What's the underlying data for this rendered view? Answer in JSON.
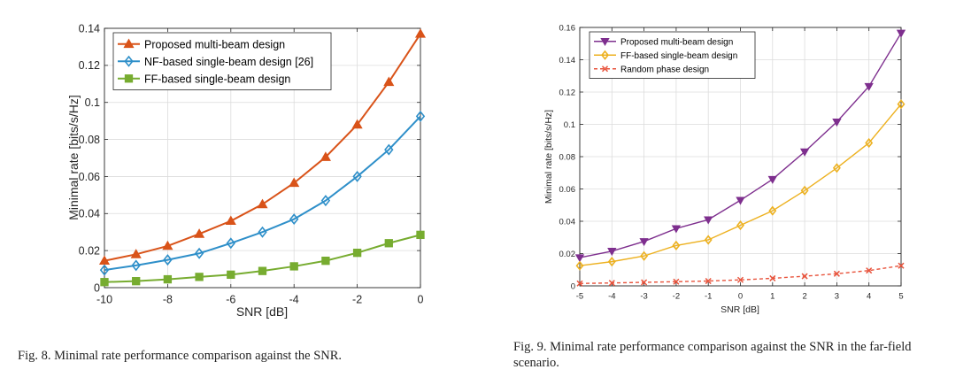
{
  "chart_data": [
    {
      "type": "line",
      "xlabel": "SNR [dB]",
      "ylabel": "Minimal rate [bits/s/Hz]",
      "xlim": [
        -10,
        0
      ],
      "ylim": [
        0,
        0.14
      ],
      "xticks": [
        -10,
        -8,
        -6,
        -4,
        -2,
        0
      ],
      "yticks": [
        0,
        0.02,
        0.04,
        0.06,
        0.08,
        0.1,
        0.12,
        0.14
      ],
      "xtick_labels": [
        "-10",
        "-8",
        "-6",
        "-4",
        "-2",
        "0"
      ],
      "ytick_labels": [
        "0",
        "0.02",
        "0.04",
        "0.06",
        "0.08",
        "0.1",
        "0.12",
        "0.14"
      ],
      "grid": true,
      "legend": "top-left",
      "x": [
        -10,
        -9,
        -8,
        -7,
        -6,
        -5,
        -4,
        -3,
        -2,
        -1,
        0
      ],
      "series": [
        {
          "name": "Proposed multi-beam design",
          "color": "#D95319",
          "marker": "triangle-up",
          "dash": "solid",
          "values": [
            0.0145,
            0.018,
            0.0225,
            0.029,
            0.036,
            0.045,
            0.0565,
            0.0705,
            0.088,
            0.111,
            0.137
          ]
        },
        {
          "name": "NF-based single-beam design [26]",
          "color": "#2E8FC9",
          "marker": "diamond",
          "dash": "solid",
          "values": [
            0.0095,
            0.012,
            0.015,
            0.0185,
            0.024,
            0.03,
            0.037,
            0.047,
            0.06,
            0.0745,
            0.0925
          ]
        },
        {
          "name": "FF-based single-beam design",
          "color": "#77AC30",
          "marker": "square",
          "dash": "solid",
          "values": [
            0.003,
            0.0035,
            0.0045,
            0.0058,
            0.007,
            0.009,
            0.0115,
            0.0145,
            0.0188,
            0.024,
            0.0285
          ]
        }
      ]
    },
    {
      "type": "line",
      "xlabel": "SNR [dB]",
      "ylabel": "Minimal rate [bits/s/Hz]",
      "xlim": [
        -5,
        5
      ],
      "ylim": [
        0,
        0.16
      ],
      "xticks": [
        -5,
        -4,
        -3,
        -2,
        -1,
        0,
        1,
        2,
        3,
        4,
        5
      ],
      "yticks": [
        0,
        0.02,
        0.04,
        0.06,
        0.08,
        0.1,
        0.12,
        0.14,
        0.16
      ],
      "xtick_labels": [
        "-5",
        "-4",
        "-3",
        "-2",
        "-1",
        "0",
        "1",
        "2",
        "3",
        "4",
        "5"
      ],
      "ytick_labels": [
        "0",
        "0.02",
        "0.04",
        "0.06",
        "0.08",
        "0.1",
        "0.12",
        "0.14",
        "0.16"
      ],
      "grid": true,
      "legend": "top-left",
      "x": [
        -5,
        -4,
        -3,
        -2,
        -1,
        0,
        1,
        2,
        3,
        4,
        5
      ],
      "series": [
        {
          "name": "Proposed multi-beam design",
          "color": "#7E2F8E",
          "marker": "triangle-down",
          "dash": "solid",
          "values": [
            0.0175,
            0.0215,
            0.0275,
            0.0355,
            0.041,
            0.053,
            0.066,
            0.083,
            0.1015,
            0.1235,
            0.1565
          ]
        },
        {
          "name": "FF-based single-beam design",
          "color": "#EDB120",
          "marker": "diamond",
          "dash": "solid",
          "values": [
            0.0125,
            0.015,
            0.0185,
            0.025,
            0.0285,
            0.0375,
            0.0465,
            0.059,
            0.073,
            0.0885,
            0.1125
          ]
        },
        {
          "name": "Random phase design",
          "color": "#E8533C",
          "marker": "x",
          "dash": "dashed",
          "values": [
            0.0015,
            0.0018,
            0.0022,
            0.0026,
            0.003,
            0.0037,
            0.0047,
            0.006,
            0.0075,
            0.0095,
            0.0125
          ]
        }
      ]
    }
  ],
  "captions": {
    "fig8": "Fig. 8.   Minimal rate performance comparison against the SNR.",
    "fig9_line1": "Fig. 9.   Minimal rate performance comparison against the SNR in the far-field",
    "fig9_line2": "scenario."
  }
}
